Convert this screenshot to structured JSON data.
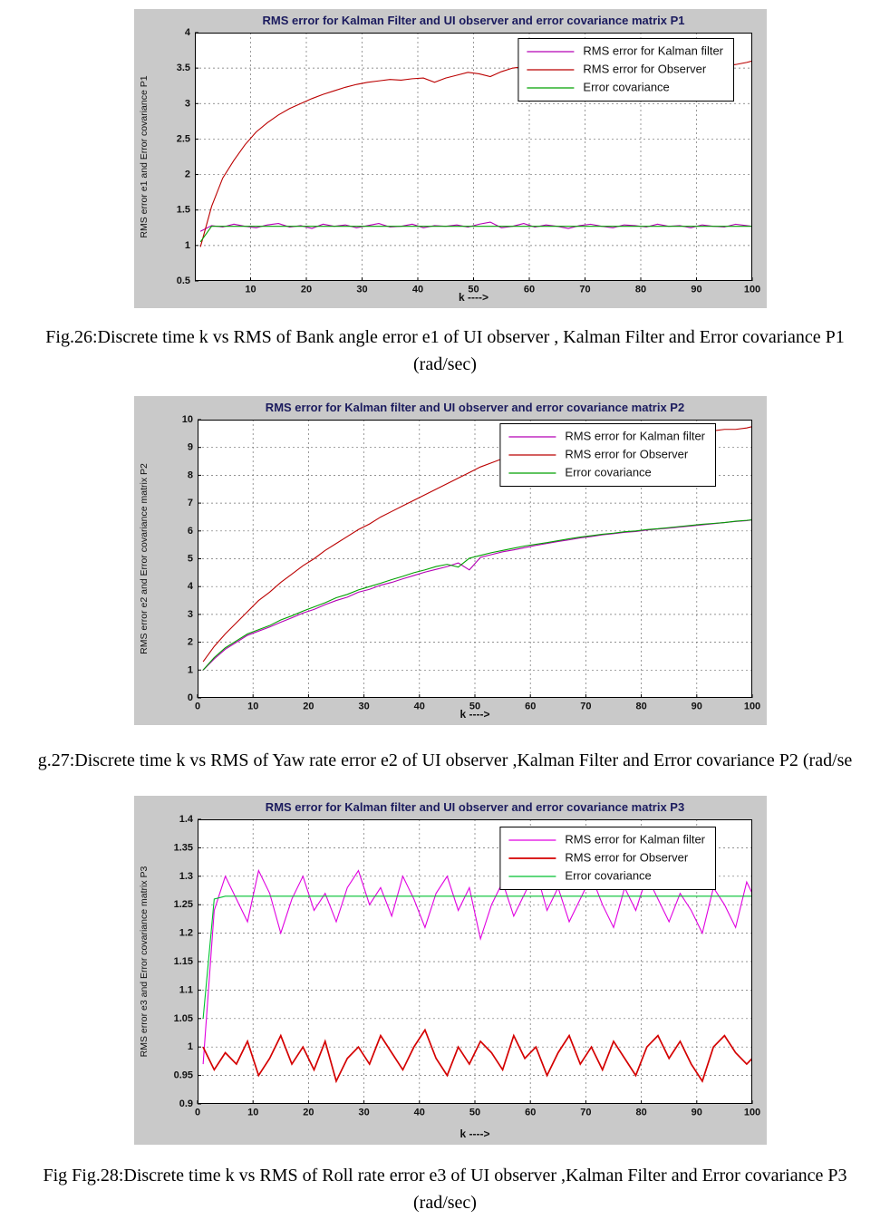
{
  "colors": {
    "panel_background": "#c9c9c9",
    "plot_background": "#ffffff",
    "grid": "#6f6f6f",
    "axis": "#000000",
    "tick_text": "#111111",
    "title_text": "#1b1b5e",
    "legend_text": "#111111"
  },
  "captions": {
    "fig26_line1": "Fig.26:Discrete time k vs RMS of Bank angle error e1 of UI observer , Kalman Filter and Error covariance P1",
    "fig26_line2": "(rad/sec)",
    "fig27": "g.27:Discrete time k vs RMS of Yaw rate error e2 of UI observer ,Kalman Filter and Error covariance P2 (rad/se",
    "fig28_line1": "Fig Fig.28:Discrete time k vs RMS of Roll rate error e3 of UI observer ,Kalman Filter and Error covariance P3",
    "fig28_line2": "(rad/sec)"
  },
  "chart_data": [
    {
      "type": "line",
      "title": "RMS error for Kalman Filter and UI observer and error covariance matrix P1",
      "xlabel": "k ---->",
      "ylabel": "RMS error e1 and Error covariance P1",
      "xlim": [
        0,
        100
      ],
      "ylim": [
        0.5,
        4
      ],
      "xticks": [
        10,
        20,
        30,
        40,
        50,
        60,
        70,
        80,
        90,
        100
      ],
      "yticks": [
        0.5,
        1,
        1.5,
        2,
        2.5,
        3,
        3.5,
        4
      ],
      "grid": "dashed",
      "legend_position": "top-right",
      "x": [
        1,
        3,
        5,
        7,
        9,
        11,
        13,
        15,
        17,
        19,
        21,
        23,
        25,
        27,
        29,
        31,
        33,
        35,
        37,
        39,
        41,
        43,
        45,
        47,
        49,
        51,
        53,
        55,
        57,
        59,
        61,
        63,
        65,
        67,
        69,
        71,
        73,
        75,
        77,
        79,
        81,
        83,
        85,
        87,
        89,
        91,
        93,
        95,
        97,
        99,
        100
      ],
      "series": [
        {
          "name": "RMS error for Kalman filter",
          "color": "#b400b4",
          "values": [
            1.2,
            1.28,
            1.26,
            1.3,
            1.27,
            1.25,
            1.29,
            1.31,
            1.26,
            1.28,
            1.24,
            1.3,
            1.27,
            1.29,
            1.25,
            1.28,
            1.31,
            1.26,
            1.27,
            1.3,
            1.25,
            1.28,
            1.27,
            1.29,
            1.26,
            1.3,
            1.33,
            1.25,
            1.27,
            1.31,
            1.26,
            1.29,
            1.27,
            1.24,
            1.28,
            1.3,
            1.27,
            1.25,
            1.29,
            1.28,
            1.26,
            1.3,
            1.27,
            1.28,
            1.25,
            1.29,
            1.27,
            1.26,
            1.3,
            1.28,
            1.27
          ]
        },
        {
          "name": "RMS error for Observer",
          "color": "#bb0000",
          "values": [
            0.98,
            1.55,
            1.95,
            2.2,
            2.42,
            2.6,
            2.73,
            2.84,
            2.93,
            3.0,
            3.07,
            3.13,
            3.18,
            3.23,
            3.27,
            3.3,
            3.32,
            3.34,
            3.33,
            3.35,
            3.36,
            3.3,
            3.36,
            3.4,
            3.44,
            3.42,
            3.38,
            3.45,
            3.5,
            3.52,
            3.48,
            3.5,
            3.53,
            3.55,
            3.5,
            3.52,
            3.49,
            3.51,
            3.53,
            3.5,
            3.52,
            3.54,
            3.51,
            3.53,
            3.5,
            3.52,
            3.54,
            3.53,
            3.55,
            3.58,
            3.6
          ]
        },
        {
          "name": "Error covariance",
          "color": "#00a000",
          "values": [
            1.05,
            1.27,
            1.27,
            1.27,
            1.27,
            1.27,
            1.27,
            1.27,
            1.27,
            1.27,
            1.27,
            1.27,
            1.27,
            1.27,
            1.27,
            1.27,
            1.27,
            1.27,
            1.27,
            1.27,
            1.27,
            1.27,
            1.27,
            1.27,
            1.27,
            1.27,
            1.27,
            1.27,
            1.27,
            1.27,
            1.27,
            1.27,
            1.27,
            1.27,
            1.27,
            1.27,
            1.27,
            1.27,
            1.27,
            1.27,
            1.27,
            1.27,
            1.27,
            1.27,
            1.27,
            1.27,
            1.27,
            1.27,
            1.27,
            1.27,
            1.27
          ]
        }
      ]
    },
    {
      "type": "line",
      "title": "RMS error for Kalman filter and UI observer and error covariance matrix P2",
      "xlabel": "k ---->",
      "ylabel": "RMS error e2 and Error covariance matrix P2",
      "xlim": [
        0,
        100
      ],
      "ylim": [
        0,
        10
      ],
      "xticks": [
        0,
        10,
        20,
        30,
        40,
        50,
        60,
        70,
        80,
        90,
        100
      ],
      "yticks": [
        0,
        1,
        2,
        3,
        4,
        5,
        6,
        7,
        8,
        9,
        10
      ],
      "grid": "dashed",
      "legend_position": "top-right",
      "x": [
        1,
        3,
        5,
        7,
        9,
        11,
        13,
        15,
        17,
        19,
        21,
        23,
        25,
        27,
        29,
        31,
        33,
        35,
        37,
        39,
        41,
        43,
        45,
        47,
        49,
        51,
        53,
        55,
        57,
        59,
        61,
        63,
        65,
        67,
        69,
        71,
        73,
        75,
        77,
        79,
        81,
        83,
        85,
        87,
        89,
        91,
        93,
        95,
        97,
        99,
        100
      ],
      "series": [
        {
          "name": "RMS error for Kalman filter",
          "color": "#b400b4",
          "values": [
            1.0,
            1.4,
            1.75,
            2.0,
            2.25,
            2.4,
            2.55,
            2.72,
            2.88,
            3.05,
            3.18,
            3.35,
            3.5,
            3.62,
            3.8,
            3.9,
            4.05,
            4.15,
            4.28,
            4.4,
            4.52,
            4.62,
            4.72,
            4.85,
            4.6,
            5.05,
            5.15,
            5.25,
            5.32,
            5.4,
            5.48,
            5.55,
            5.62,
            5.68,
            5.75,
            5.8,
            5.86,
            5.9,
            5.95,
            5.98,
            6.03,
            6.07,
            6.1,
            6.14,
            6.18,
            6.22,
            6.26,
            6.3,
            6.34,
            6.37,
            6.4
          ]
        },
        {
          "name": "RMS error for Observer",
          "color": "#bb0000",
          "values": [
            1.3,
            1.85,
            2.3,
            2.7,
            3.1,
            3.5,
            3.8,
            4.15,
            4.45,
            4.75,
            5.0,
            5.3,
            5.55,
            5.8,
            6.05,
            6.25,
            6.5,
            6.7,
            6.9,
            7.1,
            7.3,
            7.5,
            7.7,
            7.9,
            8.1,
            8.3,
            8.45,
            8.6,
            8.7,
            8.8,
            8.9,
            8.95,
            9.0,
            9.1,
            9.15,
            9.2,
            9.25,
            9.3,
            9.35,
            9.4,
            9.45,
            9.5,
            9.5,
            9.55,
            9.55,
            9.6,
            9.6,
            9.65,
            9.65,
            9.7,
            9.75
          ]
        },
        {
          "name": "Error covariance",
          "color": "#00a000",
          "values": [
            1.0,
            1.45,
            1.8,
            2.05,
            2.3,
            2.45,
            2.6,
            2.8,
            2.95,
            3.12,
            3.27,
            3.42,
            3.6,
            3.72,
            3.88,
            4.0,
            4.12,
            4.25,
            4.37,
            4.5,
            4.6,
            4.72,
            4.8,
            4.7,
            5.02,
            5.12,
            5.22,
            5.3,
            5.38,
            5.46,
            5.52,
            5.58,
            5.65,
            5.72,
            5.78,
            5.83,
            5.88,
            5.92,
            5.97,
            6.0,
            6.05,
            6.08,
            6.12,
            6.16,
            6.2,
            6.24,
            6.27,
            6.3,
            6.35,
            6.38,
            6.4
          ]
        }
      ]
    },
    {
      "type": "line",
      "title": "RMS error for Kalman filter and UI observer and error covariance matrix P3",
      "xlabel": "k ---->",
      "ylabel": "RMS error e3 and Error covariance matrix P3",
      "xlim": [
        0,
        100
      ],
      "ylim": [
        0.9,
        1.4
      ],
      "xticks": [
        0,
        10,
        20,
        30,
        40,
        50,
        60,
        70,
        80,
        90,
        100
      ],
      "yticks": [
        0.9,
        0.95,
        1,
        1.05,
        1.1,
        1.15,
        1.2,
        1.25,
        1.3,
        1.35,
        1.4
      ],
      "grid": "dashed",
      "legend_position": "top-right",
      "x": [
        1,
        3,
        5,
        7,
        9,
        11,
        13,
        15,
        17,
        19,
        21,
        23,
        25,
        27,
        29,
        31,
        33,
        35,
        37,
        39,
        41,
        43,
        45,
        47,
        49,
        51,
        53,
        55,
        57,
        59,
        61,
        63,
        65,
        67,
        69,
        71,
        73,
        75,
        77,
        79,
        81,
        83,
        85,
        87,
        89,
        91,
        93,
        95,
        97,
        99,
        100
      ],
      "series": [
        {
          "name": "RMS error for Kalman filter",
          "color": "#e000e0",
          "values": [
            0.97,
            1.24,
            1.3,
            1.26,
            1.22,
            1.31,
            1.27,
            1.2,
            1.26,
            1.3,
            1.24,
            1.27,
            1.22,
            1.28,
            1.31,
            1.25,
            1.28,
            1.23,
            1.3,
            1.26,
            1.21,
            1.27,
            1.3,
            1.24,
            1.28,
            1.19,
            1.25,
            1.29,
            1.23,
            1.27,
            1.31,
            1.24,
            1.28,
            1.22,
            1.26,
            1.3,
            1.25,
            1.21,
            1.28,
            1.24,
            1.3,
            1.26,
            1.22,
            1.27,
            1.24,
            1.2,
            1.28,
            1.25,
            1.21,
            1.29,
            1.27
          ]
        },
        {
          "name": "RMS error for Observer",
          "color": "#d40000",
          "width": 1.7,
          "values": [
            1.0,
            0.96,
            0.99,
            0.97,
            1.01,
            0.95,
            0.98,
            1.02,
            0.97,
            1.0,
            0.96,
            1.01,
            0.94,
            0.98,
            1.0,
            0.97,
            1.02,
            0.99,
            0.96,
            1.0,
            1.03,
            0.98,
            0.95,
            1.0,
            0.97,
            1.01,
            0.99,
            0.96,
            1.02,
            0.98,
            1.0,
            0.95,
            0.99,
            1.02,
            0.97,
            1.0,
            0.96,
            1.01,
            0.98,
            0.95,
            1.0,
            1.02,
            0.98,
            1.01,
            0.97,
            0.94,
            1.0,
            1.02,
            0.99,
            0.97,
            0.98
          ]
        },
        {
          "name": "Error covariance",
          "color": "#00c030",
          "values": [
            1.05,
            1.26,
            1.265,
            1.265,
            1.265,
            1.265,
            1.265,
            1.265,
            1.265,
            1.265,
            1.265,
            1.265,
            1.265,
            1.265,
            1.265,
            1.265,
            1.265,
            1.265,
            1.265,
            1.265,
            1.265,
            1.265,
            1.265,
            1.265,
            1.265,
            1.265,
            1.265,
            1.265,
            1.265,
            1.265,
            1.265,
            1.265,
            1.265,
            1.265,
            1.265,
            1.265,
            1.265,
            1.265,
            1.265,
            1.265,
            1.265,
            1.265,
            1.265,
            1.265,
            1.265,
            1.265,
            1.265,
            1.265,
            1.265,
            1.265,
            1.265
          ]
        }
      ]
    }
  ]
}
